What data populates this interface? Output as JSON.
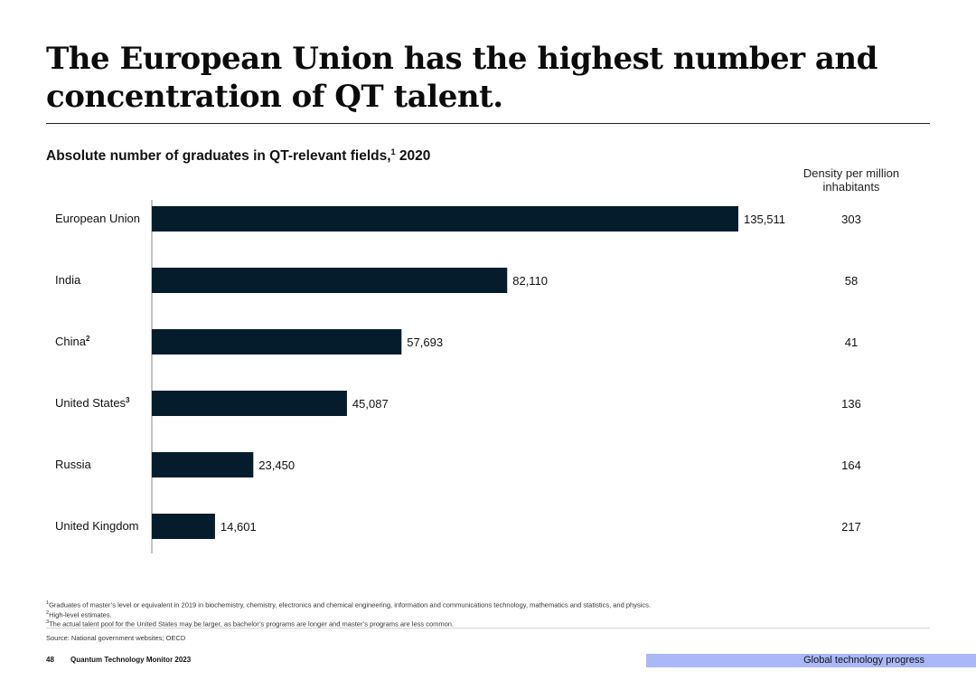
{
  "title": "The European Union has the highest number and concentration of QT talent.",
  "subtitle": {
    "text": "Absolute number of graduates in QT-relevant fields,",
    "sup": "1",
    "year": " 2020"
  },
  "density_header": {
    "line1": "Density per million",
    "line2": "inhabitants"
  },
  "chart_data": {
    "type": "bar",
    "orientation": "horizontal",
    "title": "Absolute number of graduates in QT-relevant fields, 2020",
    "categories": [
      "European Union",
      "India",
      "China",
      "United States",
      "Russia",
      "United Kingdom"
    ],
    "category_superscripts": [
      "",
      "",
      "2",
      "3",
      "",
      ""
    ],
    "values": [
      135511,
      82110,
      57693,
      45087,
      23450,
      14601
    ],
    "value_labels": [
      "135,511",
      "82,110",
      "57,693",
      "45,087",
      "23,450",
      "14,601"
    ],
    "density_per_million": [
      303,
      58,
      41,
      136,
      164,
      217
    ],
    "xlim": [
      0,
      135511
    ],
    "bar_color": "#051c2c"
  },
  "footnotes": [
    {
      "sup": "1",
      "text": "Graduates of master’s level or equivalent in 2019 in biochemistry, chemistry, electronics and chemical engineering, information and communications technology, mathematics and statistics, and physics."
    },
    {
      "sup": "2",
      "text": "High-level estimates."
    },
    {
      "sup": "3",
      "text": "The actual talent pool for the United States may be larger, as bachelor’s programs are longer and master’s programs are less common."
    }
  ],
  "source": "Source: National government websites; OECD",
  "footer": {
    "page_number": "48",
    "publication": "Quantum Technology Monitor 2023",
    "section": "Global technology progress"
  },
  "colors": {
    "bar": "#051c2c",
    "section_tab": "#aab8f8"
  }
}
